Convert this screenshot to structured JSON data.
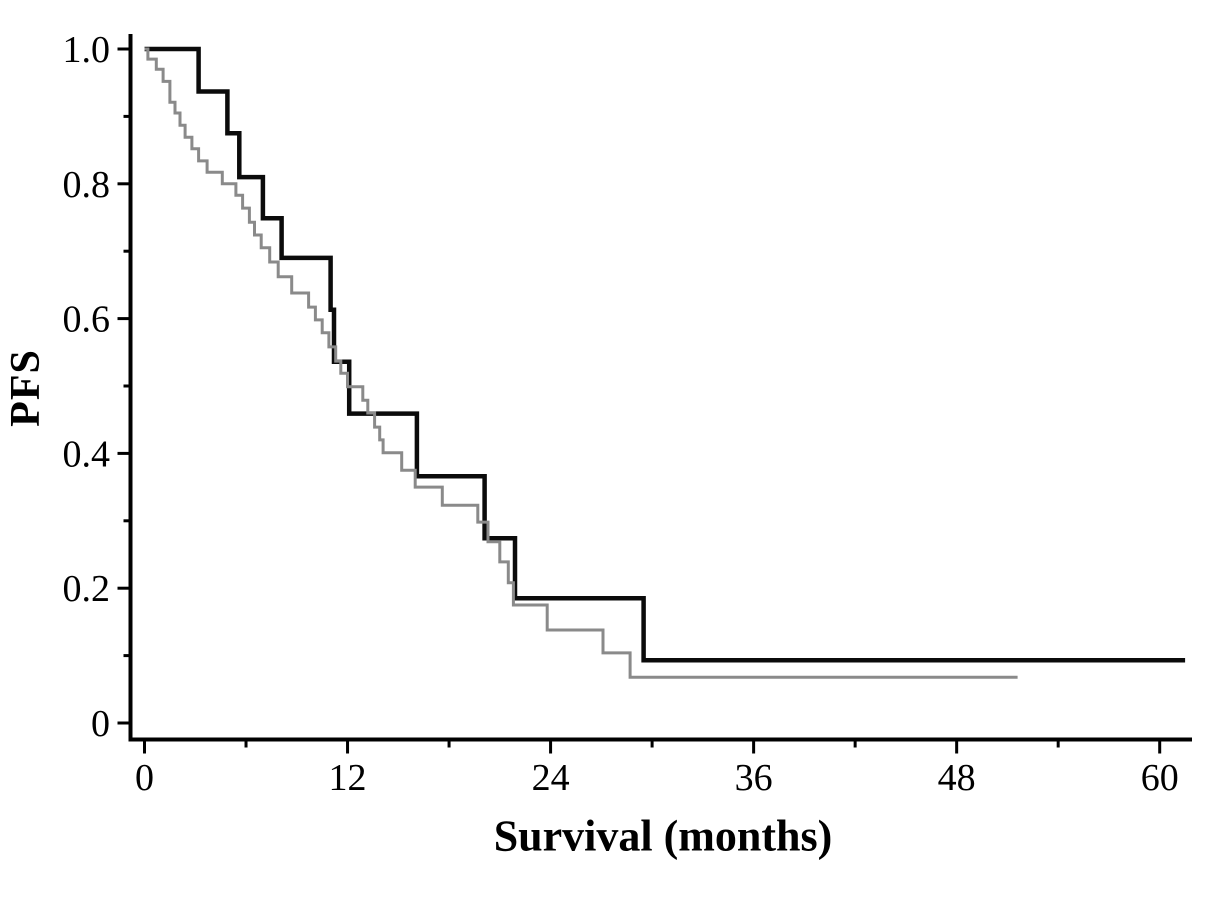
{
  "page": {
    "background_color": "#ffffff"
  },
  "chart_data": {
    "type": "line",
    "chart_kind": "kaplan-meier-step",
    "title": "",
    "xlabel": "Survival (months)",
    "ylabel": "PFS",
    "xlim": [
      0,
      62
    ],
    "ylim": [
      0,
      1.0
    ],
    "grid": false,
    "legend": "none",
    "axis_color": "#000000",
    "x_ticks": {
      "major": [
        {
          "value": 0,
          "label": "0"
        },
        {
          "value": 12,
          "label": "12"
        },
        {
          "value": 24,
          "label": "24"
        },
        {
          "value": 36,
          "label": "36"
        },
        {
          "value": 48,
          "label": "48"
        },
        {
          "value": 60,
          "label": "60"
        }
      ],
      "minor": [
        6,
        18,
        30,
        42,
        54
      ]
    },
    "y_ticks": {
      "major": [
        {
          "value": 1.0,
          "label": "1.0"
        },
        {
          "value": 0.8,
          "label": "0.8"
        },
        {
          "value": 0.6,
          "label": "0.6"
        },
        {
          "value": 0.4,
          "label": "0.4"
        },
        {
          "value": 0.2,
          "label": "0.2"
        },
        {
          "value": 0.0,
          "label": "0"
        }
      ],
      "minor": [
        0.9,
        0.7,
        0.5,
        0.3,
        0.1
      ]
    },
    "series": [
      {
        "name": "black",
        "color": "#0b0b0b",
        "stroke_width": 4.5,
        "end_time": 61.5,
        "steps": [
          [
            0,
            1.0
          ],
          [
            3.2,
            0.937
          ],
          [
            4.9,
            0.875
          ],
          [
            5.6,
            0.81
          ],
          [
            7.0,
            0.749
          ],
          [
            8.1,
            0.69
          ],
          [
            11.0,
            0.613
          ],
          [
            11.2,
            0.536
          ],
          [
            12.1,
            0.459
          ],
          [
            16.1,
            0.366
          ],
          [
            20.1,
            0.274
          ],
          [
            21.9,
            0.185
          ],
          [
            29.5,
            0.093
          ]
        ]
      },
      {
        "name": "gray",
        "color": "#8a8a8a",
        "stroke_width": 3,
        "end_time": 51.6,
        "steps": [
          [
            0,
            1.0
          ],
          [
            0.2,
            0.985
          ],
          [
            0.7,
            0.97
          ],
          [
            1.1,
            0.952
          ],
          [
            1.5,
            0.921
          ],
          [
            1.8,
            0.905
          ],
          [
            2.1,
            0.887
          ],
          [
            2.4,
            0.869
          ],
          [
            2.8,
            0.852
          ],
          [
            3.2,
            0.834
          ],
          [
            3.7,
            0.817
          ],
          [
            4.6,
            0.8
          ],
          [
            5.4,
            0.783
          ],
          [
            5.8,
            0.764
          ],
          [
            6.2,
            0.743
          ],
          [
            6.5,
            0.724
          ],
          [
            6.9,
            0.705
          ],
          [
            7.4,
            0.684
          ],
          [
            7.9,
            0.662
          ],
          [
            8.7,
            0.638
          ],
          [
            9.7,
            0.617
          ],
          [
            10.1,
            0.598
          ],
          [
            10.5,
            0.579
          ],
          [
            10.9,
            0.558
          ],
          [
            11.3,
            0.537
          ],
          [
            11.6,
            0.519
          ],
          [
            12.0,
            0.499
          ],
          [
            12.9,
            0.479
          ],
          [
            13.2,
            0.46
          ],
          [
            13.6,
            0.439
          ],
          [
            13.9,
            0.42
          ],
          [
            14.1,
            0.401
          ],
          [
            15.2,
            0.375
          ],
          [
            16.0,
            0.35
          ],
          [
            17.6,
            0.323
          ],
          [
            19.7,
            0.298
          ],
          [
            20.3,
            0.269
          ],
          [
            21.0,
            0.239
          ],
          [
            21.5,
            0.208
          ],
          [
            21.8,
            0.175
          ],
          [
            23.8,
            0.138
          ],
          [
            27.1,
            0.104
          ],
          [
            28.7,
            0.068
          ]
        ]
      }
    ]
  }
}
